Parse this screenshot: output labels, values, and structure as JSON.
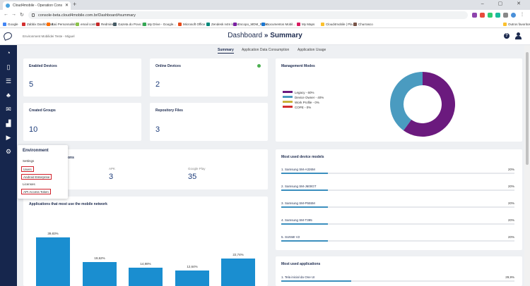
{
  "browser": {
    "tab_title": "Cloud4mobile - Operation Cons",
    "url": "console-beta.cloud4mobile.com.br/Dashboard#summary",
    "bookmarks": [
      "Google",
      "Zabbix Dashboard",
      "Itaú Personnalité",
      "email control",
      "Redmine",
      "Gazeta do Povo | Úl...",
      "My Drive - Google...",
      "Microsoft Office",
      "Zendesk n4m login",
      "Escopo_MDM_Rede...",
      "Documentos Mobil...",
      "My Maps",
      "Cloud4mobile | Pla...",
      "Churrasco",
      "Outros favoritos"
    ]
  },
  "header": {
    "env_user": "Environment Mobilidei Teste - Miguel",
    "title_prefix": "Dashboard",
    "title_sep": "»",
    "title_main": "Summary",
    "help": "?"
  },
  "subtabs": [
    "Summary",
    "Application Data Consumption",
    "Application Usage"
  ],
  "cards": {
    "enabled_devices": {
      "title": "Enabled Devices",
      "value": "5"
    },
    "online_devices": {
      "title": "Online Devices",
      "value": "2"
    },
    "created_groups": {
      "title": "Created Groups",
      "value": "10"
    },
    "repository_files": {
      "title": "Repository Files",
      "value": "3"
    },
    "management_modes": {
      "title": "Management Modes"
    },
    "apps_partial": {
      "title_suffix": "ons",
      "apk_label": "APK",
      "apk_value": "3",
      "gp_label": "Google Play",
      "gp_value": "35"
    },
    "most_used_models": {
      "title": "Most used device models"
    },
    "mobile_network": {
      "title": "Applications that most use the mobile network"
    },
    "most_used_apps": {
      "title": "Most used applications",
      "rows": [
        {
          "label": "1. Tela inicial da One UI",
          "pct": "29,9%",
          "value": 29.9
        }
      ]
    }
  },
  "colors": {
    "legacy": "#6b1a7e",
    "device_owner": "#4a9bc0",
    "work_profile": "#c9b23a",
    "cope": "#d32f2f"
  },
  "management_legend": [
    "Legacy - 60%",
    "Device Owner - 40%",
    "Work Profile - 0%",
    "COPE - 0%"
  ],
  "device_models": [
    {
      "label": "1. Samsung SM-A326M",
      "pct": "20%",
      "value": 20
    },
    {
      "label": "2. Samsung SM-J600GT",
      "pct": "20%",
      "value": 20
    },
    {
      "label": "3. Samsung SM-P555M",
      "pct": "20%",
      "value": 20
    },
    {
      "label": "4. Samsung SM-T395",
      "pct": "20%",
      "value": 20
    },
    {
      "label": "5. SUNMI V2",
      "pct": "20%",
      "value": 20
    }
  ],
  "env_menu": {
    "heading": "Environment",
    "items": [
      "Settings",
      "Users",
      "Android Enterprise",
      "Licenses",
      "API Access Token"
    ]
  },
  "chart_data": [
    {
      "type": "pie",
      "labels": [
        "Legacy",
        "Device Owner",
        "Work Profile",
        "COPE"
      ],
      "values": [
        60,
        40,
        0,
        0
      ],
      "legend": "left"
    },
    {
      "type": "bar",
      "title": "Applications that most use the mobile network",
      "categories": [
        "",
        "",
        "",
        "",
        ""
      ],
      "values": [
        39.83,
        19.62,
        14.98,
        12.64,
        22.74
      ],
      "labels": [
        "39,83%",
        "19,62%",
        "14,98%",
        "12,64%",
        "22,74%"
      ],
      "ylim": [
        0,
        45
      ]
    }
  ]
}
